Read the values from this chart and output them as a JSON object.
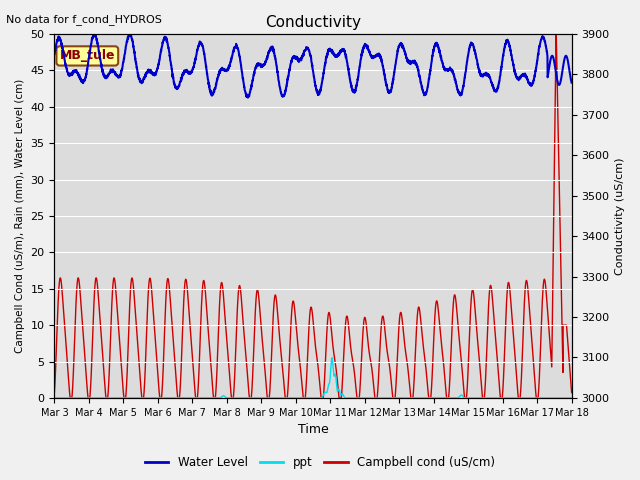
{
  "title": "Conductivity",
  "title_topleft": "No data for f_cond_HYDROS",
  "xlabel": "Time",
  "ylabel_left": "Campbell Cond (uS/m), Rain (mm), Water Level (cm)",
  "ylabel_right": "Conductivity (uS/cm)",
  "ylim_left": [
    0,
    50
  ],
  "ylim_right": [
    3000,
    3900
  ],
  "xlim": [
    0,
    15
  ],
  "xtick_labels": [
    "Mar 3",
    "Mar 4",
    "Mar 5",
    "Mar 6",
    "Mar 7",
    "Mar 8",
    "Mar 9",
    "Mar 10",
    "Mar 11",
    "Mar 12",
    "Mar 13",
    "Mar 14",
    "Mar 15",
    "Mar 16",
    "Mar 17",
    "Mar 18"
  ],
  "xtick_positions": [
    0,
    1,
    2,
    3,
    4,
    5,
    6,
    7,
    8,
    9,
    10,
    11,
    12,
    13,
    14,
    15
  ],
  "annotation_text": "MB_tule",
  "bg_color": "#dcdcdc",
  "fig_bg_color": "#f0f0f0",
  "water_level_color": "#0000cc",
  "ppt_color": "#00ddee",
  "campbell_color": "#cc0000",
  "legend_labels": [
    "Water Level",
    "ppt",
    "Campbell cond (uS/cm)"
  ]
}
